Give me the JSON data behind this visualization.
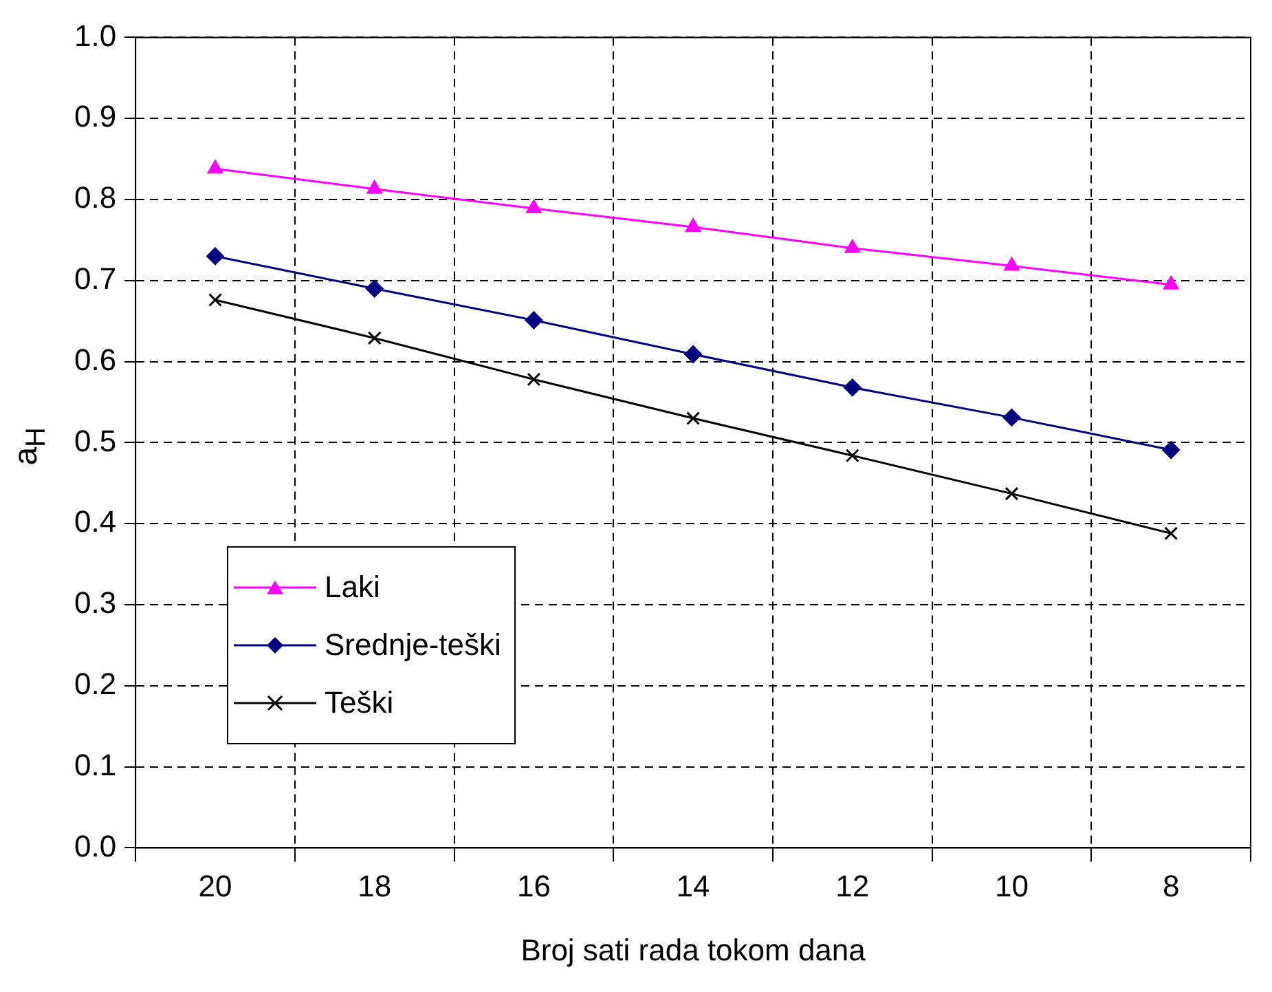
{
  "chart_data": {
    "type": "line",
    "xlabel": "Broj sati rada tokom dana",
    "ylabel": "a$_{H}$",
    "categories": [
      "20",
      "18",
      "16",
      "14",
      "12",
      "10",
      "8"
    ],
    "series": [
      {
        "name": "Laki",
        "color": "#ff00ff",
        "marker": "triangle",
        "values": [
          0.838,
          0.813,
          0.789,
          0.766,
          0.74,
          0.718,
          0.695
        ]
      },
      {
        "name": "Srednje-teški",
        "color": "#000080",
        "marker": "diamond",
        "values": [
          0.73,
          0.69,
          0.651,
          0.609,
          0.568,
          0.531,
          0.491
        ]
      },
      {
        "name": "Teški",
        "color": "#000000",
        "marker": "cross",
        "values": [
          0.676,
          0.629,
          0.578,
          0.53,
          0.484,
          0.437,
          0.388
        ]
      }
    ],
    "ylim": [
      0,
      1
    ],
    "yticks": [
      {
        "value": 0,
        "label": "0.0"
      },
      0.1,
      0.2,
      0.3,
      0.4,
      0.5,
      0.6,
      0.7,
      0.8,
      0.9,
      {
        "value": 1,
        "label": "1.0"
      }
    ],
    "grid": true,
    "legend": "bottom left",
    "line_style": "solid"
  }
}
